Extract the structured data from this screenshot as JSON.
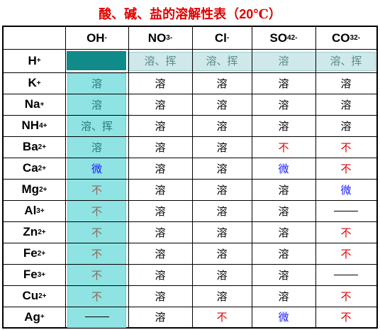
{
  "title": {
    "text": "酸、碱、盐的溶解性表（",
    "temp": "20",
    "unit": "℃）"
  },
  "anions": [
    {
      "base": "OH",
      "sub": "",
      "sup": "-"
    },
    {
      "base": "NO",
      "sub": "3",
      "sup": "-"
    },
    {
      "base": "Cl",
      "sub": "",
      "sup": "-"
    },
    {
      "base": "SO",
      "sub": "4",
      "sup": "2-"
    },
    {
      "base": "CO",
      "sub": "3",
      "sup": "2-"
    }
  ],
  "rows": [
    {
      "ion": "H",
      "charge": "+",
      "cells": [
        "",
        "溶、挥",
        "溶、挥",
        "溶",
        "溶、挥"
      ]
    },
    {
      "ion": "K",
      "charge": "+",
      "cells": [
        "溶",
        "溶",
        "溶",
        "溶",
        "溶"
      ]
    },
    {
      "ion": "Na",
      "charge": "+",
      "cells": [
        "溶",
        "溶",
        "溶",
        "溶",
        "溶"
      ]
    },
    {
      "ion": "NH",
      "charge": "+",
      "sub": "4",
      "cells": [
        "溶、挥",
        "溶",
        "溶",
        "溶",
        "溶"
      ]
    },
    {
      "ion": "Ba",
      "charge": "2+",
      "cells": [
        "溶",
        "溶",
        "溶",
        "不",
        "不"
      ]
    },
    {
      "ion": "Ca",
      "charge": "2+",
      "cells": [
        "微",
        "溶",
        "溶",
        "微",
        "不"
      ]
    },
    {
      "ion": "Mg",
      "charge": "2+",
      "cells": [
        "不",
        "溶",
        "溶",
        "溶",
        "微"
      ]
    },
    {
      "ion": "Al",
      "charge": "3+",
      "cells": [
        "不",
        "溶",
        "溶",
        "溶",
        "—"
      ]
    },
    {
      "ion": "Zn",
      "charge": "2+",
      "cells": [
        "不",
        "溶",
        "溶",
        "溶",
        "不"
      ]
    },
    {
      "ion": "Fe",
      "charge": "2+",
      "cells": [
        "不",
        "溶",
        "溶",
        "溶",
        "不"
      ]
    },
    {
      "ion": "Fe",
      "charge": "3+",
      "cells": [
        "不",
        "溶",
        "溶",
        "溶",
        "—"
      ]
    },
    {
      "ion": "Cu",
      "charge": "2+",
      "cells": [
        "不",
        "溶",
        "溶",
        "溶",
        "不"
      ]
    },
    {
      "ion": "Ag",
      "charge": "+",
      "cells": [
        "—",
        "溶",
        "不",
        "微",
        "不"
      ]
    }
  ],
  "colors": {
    "insoluble": "#e00000",
    "slightly": "#1a1aff",
    "soluble": "#000000",
    "highlight_teal": "#118a8a",
    "highlight_cyan": "#8fe3e3"
  }
}
